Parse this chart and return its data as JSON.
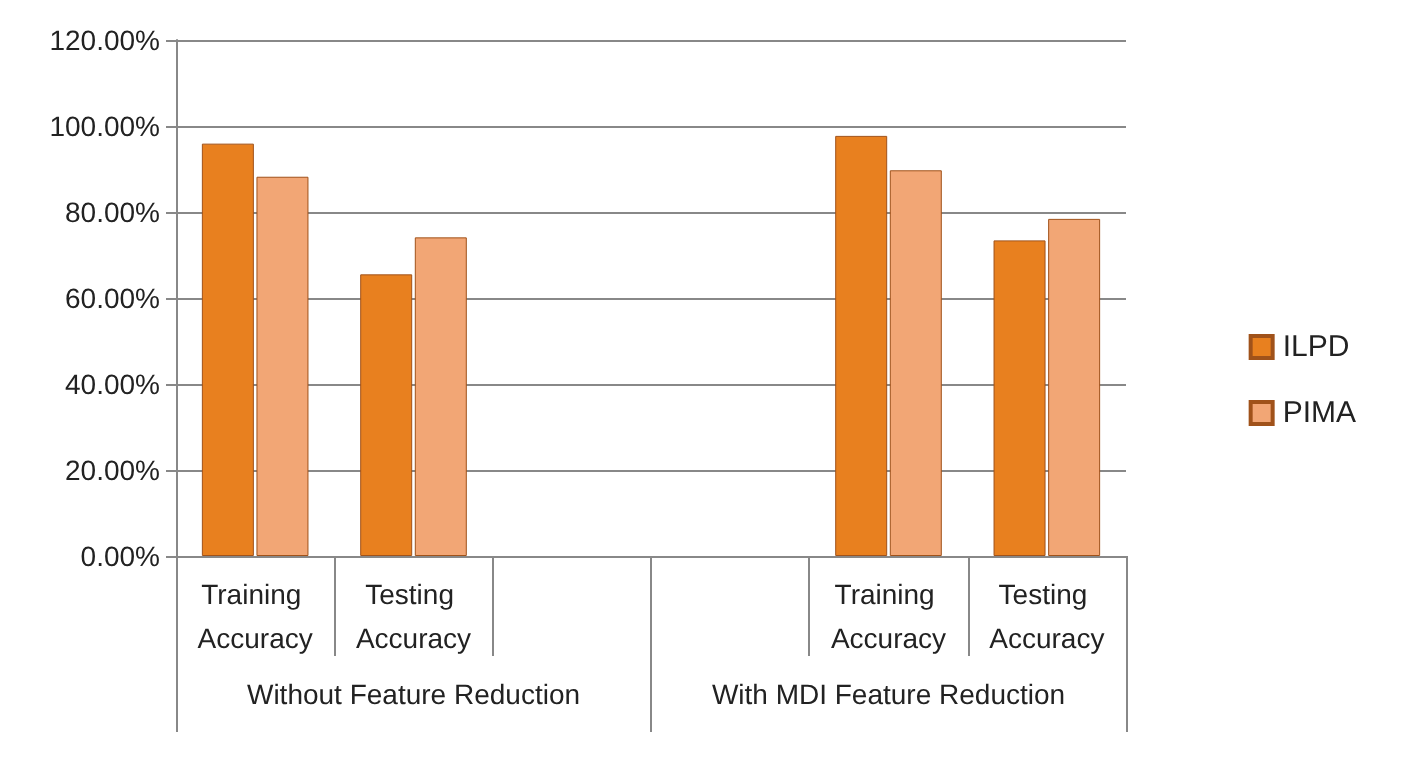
{
  "chart_data": {
    "type": "bar",
    "categories": [
      "Training Accuracy",
      "Testing Accuracy",
      null,
      null,
      "Training Accuracy",
      "Testing Accuracy"
    ],
    "series": [
      {
        "name": "ILPD",
        "color": "#e8801f",
        "values": [
          95.9,
          65.5,
          null,
          null,
          97.7,
          73.4
        ]
      },
      {
        "name": "PIMA",
        "color": "#f2a675",
        "values": [
          88.2,
          74.1,
          null,
          null,
          89.7,
          78.4
        ]
      }
    ],
    "ylim": [
      0,
      120
    ],
    "yticks": [
      {
        "value": 0,
        "label": "0.00%"
      },
      {
        "value": 20,
        "label": "20.00%"
      },
      {
        "value": 40,
        "label": "40.00%"
      },
      {
        "value": 60,
        "label": "60.00%"
      },
      {
        "value": 80,
        "label": "80.00%"
      },
      {
        "value": 100,
        "label": "100.00%"
      },
      {
        "value": 120,
        "label": "120.00%"
      }
    ],
    "annotations": [
      "Without Feature Reduction",
      "With MDI Feature Reduction"
    ],
    "grid": "y",
    "legend": "right"
  }
}
